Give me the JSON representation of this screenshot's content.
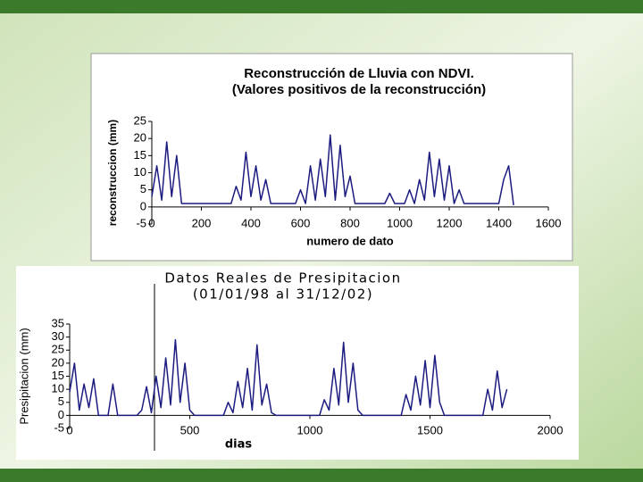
{
  "chart_data": [
    {
      "type": "line",
      "title": "Reconstrucción de Lluvia con NDVI.",
      "subtitle": "(Valores positivos de la reconstrucción)",
      "x_label": "numero de dato",
      "y_label": "reconstruccion (mm)",
      "xlim": [
        0,
        1600
      ],
      "xticks": [
        0,
        200,
        400,
        600,
        800,
        1000,
        1200,
        1400,
        1600
      ],
      "ylim": [
        -5,
        25
      ],
      "yticks": [
        -5,
        0,
        5,
        10,
        15,
        20,
        25
      ],
      "color": "#1c1c80",
      "x": [
        0,
        20,
        40,
        60,
        80,
        100,
        120,
        140,
        160,
        180,
        200,
        220,
        240,
        260,
        280,
        300,
        320,
        340,
        360,
        380,
        400,
        420,
        440,
        460,
        480,
        500,
        520,
        540,
        560,
        580,
        600,
        620,
        640,
        660,
        680,
        700,
        720,
        740,
        760,
        780,
        800,
        820,
        840,
        860,
        880,
        900,
        920,
        940,
        960,
        980,
        1000,
        1020,
        1040,
        1060,
        1080,
        1100,
        1120,
        1140,
        1160,
        1180,
        1200,
        1220,
        1240,
        1260,
        1280,
        1300,
        1320,
        1340,
        1360,
        1380,
        1400,
        1420,
        1440,
        1460
      ],
      "values": [
        3,
        12,
        2,
        19,
        3,
        15,
        1,
        1,
        1,
        1,
        1,
        1,
        1,
        1,
        1,
        1,
        1,
        6,
        2,
        16,
        3,
        12,
        2,
        8,
        1,
        1,
        1,
        1,
        1,
        1,
        5,
        1,
        12,
        2,
        14,
        3,
        21,
        2,
        18,
        3,
        9,
        1,
        1,
        1,
        1,
        1,
        1,
        1,
        4,
        1,
        1,
        1,
        5,
        1,
        8,
        2,
        16,
        3,
        14,
        2,
        12,
        1,
        5,
        1,
        1,
        1,
        1,
        1,
        1,
        1,
        1,
        8,
        12,
        0.5
      ]
    },
    {
      "type": "line",
      "title": "Datos Reales de Presipitacion",
      "subtitle": "(01/01/98 al 31/12/02)",
      "x_label": "dias",
      "y_label": "Presipitacion (mm)",
      "xlim": [
        0,
        2000
      ],
      "xticks": [
        0,
        500,
        1000,
        1500,
        2000
      ],
      "ylim": [
        -5,
        35
      ],
      "yticks": [
        -5,
        0,
        5,
        10,
        15,
        20,
        25,
        30,
        35
      ],
      "color": "#1c1c80",
      "x": [
        0,
        20,
        40,
        60,
        80,
        100,
        120,
        140,
        160,
        180,
        200,
        220,
        240,
        260,
        280,
        300,
        320,
        340,
        360,
        380,
        400,
        420,
        440,
        460,
        480,
        500,
        520,
        540,
        560,
        580,
        600,
        620,
        640,
        660,
        680,
        700,
        720,
        740,
        760,
        780,
        800,
        820,
        840,
        860,
        880,
        900,
        920,
        940,
        960,
        980,
        1000,
        1020,
        1040,
        1060,
        1080,
        1100,
        1120,
        1140,
        1160,
        1180,
        1200,
        1220,
        1240,
        1260,
        1280,
        1300,
        1320,
        1340,
        1360,
        1380,
        1400,
        1420,
        1440,
        1460,
        1480,
        1500,
        1520,
        1540,
        1560,
        1580,
        1600,
        1620,
        1640,
        1660,
        1680,
        1700,
        1720,
        1740,
        1760,
        1780,
        1800,
        1820
      ],
      "values": [
        9,
        20,
        2,
        12,
        3,
        14,
        0,
        0,
        0,
        12,
        0,
        0,
        0,
        0,
        0,
        2,
        11,
        1,
        15,
        3,
        22,
        4,
        29,
        5,
        20,
        2,
        0,
        0,
        0,
        0,
        0,
        0,
        0,
        5,
        1,
        13,
        3,
        18,
        2,
        27,
        4,
        12,
        1,
        0,
        0,
        0,
        0,
        0,
        0,
        0,
        0,
        0,
        0,
        6,
        2,
        18,
        4,
        28,
        5,
        20,
        2,
        0,
        0,
        0,
        0,
        0,
        0,
        0,
        0,
        0,
        8,
        2,
        15,
        4,
        21,
        3,
        23,
        5,
        0,
        0,
        0,
        0,
        0,
        0,
        0,
        0,
        0,
        10,
        2,
        17,
        3,
        10
      ]
    }
  ]
}
